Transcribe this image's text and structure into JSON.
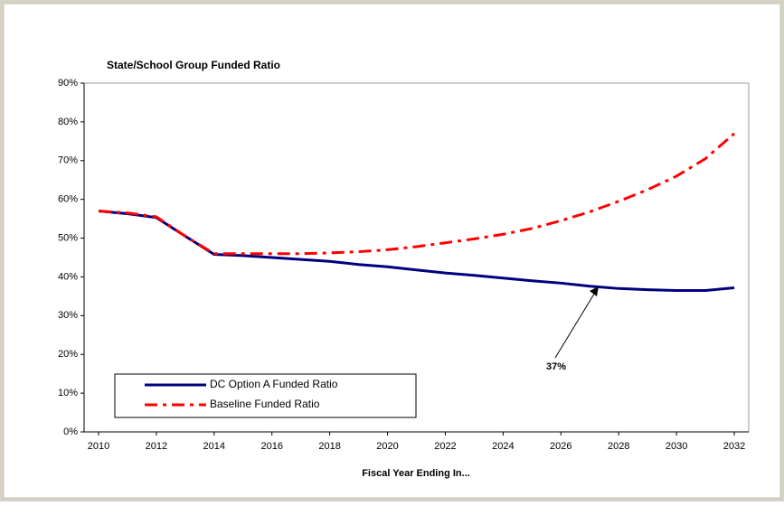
{
  "chart_data": {
    "type": "line",
    "title": "State/School Group Funded Ratio",
    "x_label": "Fiscal Year Ending In...",
    "annotation": "37%",
    "categories": [
      "2010",
      null,
      "2012",
      null,
      "2014",
      null,
      "2016",
      null,
      "2018",
      null,
      "2020",
      null,
      "2022",
      null,
      "2024",
      null,
      "2026",
      null,
      "2028",
      null,
      "2030",
      null,
      "2032"
    ],
    "series": [
      {
        "name": "DC Option A Funded Ratio",
        "color": "#00007f",
        "dash": "solid",
        "values": [
          57,
          56.3,
          55.3,
          50.5,
          45.8,
          45.5,
          45,
          44.5,
          44,
          43.2,
          42.6,
          41.8,
          41,
          40.4,
          39.7,
          39,
          38.4,
          37.6,
          37,
          36.7,
          36.5,
          36.5,
          37.2
        ]
      },
      {
        "name": "Baseline Funded Ratio",
        "color": "#ff0000",
        "dash": "dashdot",
        "values": [
          57,
          56.5,
          55.5,
          50.5,
          46,
          46,
          46,
          46,
          46.2,
          46.5,
          47,
          47.8,
          48.8,
          49.8,
          51,
          52.5,
          54.5,
          56.8,
          59.5,
          62.5,
          66,
          70.5,
          77
        ]
      }
    ],
    "ylim": [
      0,
      90
    ],
    "yticks": [
      {
        "value": 0,
        "label": "0%"
      },
      {
        "value": 10,
        "label": "10%"
      },
      {
        "value": 20,
        "label": "20%"
      },
      {
        "value": 30,
        "label": "30%"
      },
      {
        "value": 40,
        "label": "40%"
      },
      {
        "value": 50,
        "label": "50%"
      },
      {
        "value": 60,
        "label": "60%"
      },
      {
        "value": 70,
        "label": "70%"
      },
      {
        "value": 80,
        "label": "80%"
      },
      {
        "value": 90,
        "label": "90%"
      }
    ],
    "grid": false,
    "legend": "lower left"
  }
}
